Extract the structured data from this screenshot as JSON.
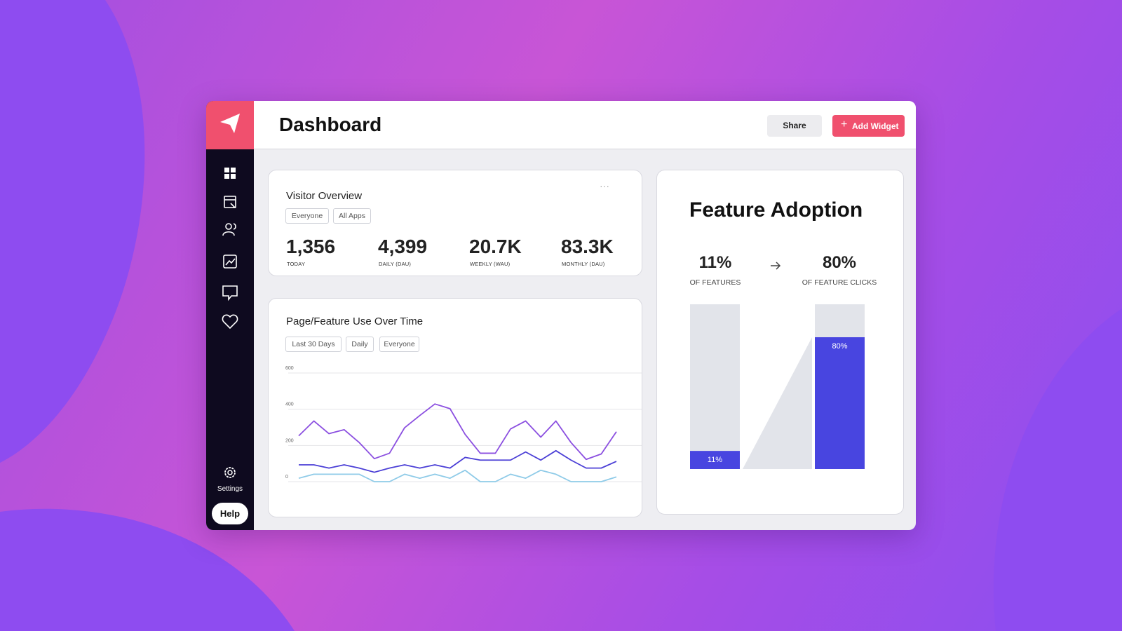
{
  "sidebar": {
    "settings": "Settings",
    "help": "Help"
  },
  "header": {
    "title": "Dashboard",
    "share": "Share",
    "add_widget": "Add Widget"
  },
  "visitor_overview": {
    "title": "Visitor Overview",
    "filters": [
      "Everyone",
      "All Apps"
    ],
    "stats": [
      {
        "value": "1,356",
        "label": "TODAY"
      },
      {
        "value": "4,399",
        "label": "DAILY (DAU)"
      },
      {
        "value": "20.7K",
        "label": "WEEKLY (WAU)"
      },
      {
        "value": "83.3K",
        "label": "MONTHLY (DAU)"
      }
    ]
  },
  "feature_use": {
    "title": "Page/Feature Use Over Time",
    "filters": [
      "Last 30 Days",
      "Daily",
      "Everyone"
    ],
    "chart": {
      "type": "line",
      "ylim": [
        0,
        600
      ],
      "yticks": [
        0,
        200,
        400,
        600
      ],
      "grid": true,
      "series": [
        {
          "color": "#8b4fe0",
          "values": [
            253,
            335,
            265,
            287,
            216,
            127,
            157,
            298,
            365,
            429,
            403,
            261,
            157,
            157,
            291,
            335,
            246,
            335,
            216,
            123,
            153,
            276
          ]
        },
        {
          "color": "#4b3fd6",
          "values": [
            93,
            93,
            75,
            93,
            75,
            52,
            75,
            93,
            75,
            93,
            75,
            134,
            119,
            119,
            119,
            164,
            119,
            171,
            119,
            75,
            75,
            112
          ]
        },
        {
          "color": "#8fcbe8",
          "values": [
            19,
            41,
            41,
            41,
            41,
            0,
            0,
            41,
            19,
            41,
            19,
            63,
            0,
            0,
            41,
            19,
            63,
            41,
            0,
            0,
            0,
            26
          ]
        }
      ]
    }
  },
  "feature_adoption": {
    "title": "Feature Adoption",
    "stats": [
      {
        "value": "11%",
        "label": "OF FEATURES"
      },
      {
        "value": "80%",
        "label": "OF FEATURE CLICKS"
      }
    ],
    "chart": {
      "type": "bar",
      "ylim": [
        0,
        100
      ],
      "values": [
        11,
        80
      ],
      "value_labels": [
        "11%",
        "80%"
      ],
      "color": "#4845e0",
      "track_color": "#e2e4ea"
    }
  }
}
